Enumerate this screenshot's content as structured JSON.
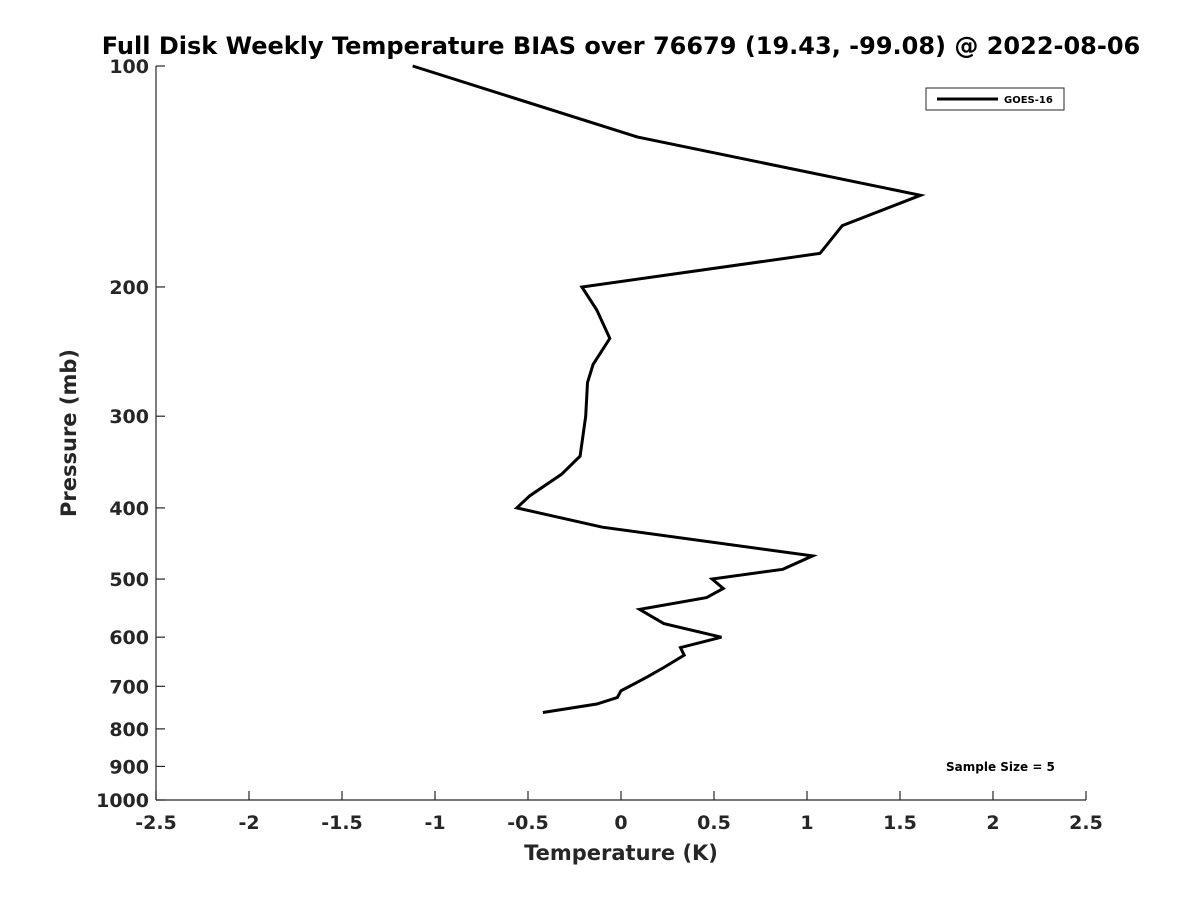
{
  "chart_data": {
    "type": "line",
    "title": "Full Disk Weekly Temperature BIAS over 76679 (19.43, -99.08) @ 2022-08-06",
    "xlabel": "Temperature (K)",
    "ylabel": "Pressure (mb)",
    "xlim": [
      -2.5,
      2.5
    ],
    "ylim": [
      100,
      1000
    ],
    "y_scale": "log",
    "y_reversed": true,
    "x_ticks": [
      "-2.5",
      "-2",
      "-1.5",
      "-1",
      "-0.5",
      "0",
      "0.5",
      "1",
      "1.5",
      "2",
      "2.5"
    ],
    "y_ticks": [
      "100",
      "200",
      "300",
      "400",
      "500",
      "600",
      "700",
      "800",
      "900",
      "1000"
    ],
    "grid": false,
    "legend_position": "top-right",
    "annotation": "Sample Size = 5",
    "series": [
      {
        "name": "GOES-16",
        "color": "#000000",
        "x": [
          -1.12,
          0.09,
          1.61,
          1.19,
          1.07,
          -0.21,
          -0.13,
          -0.06,
          -0.15,
          -0.18,
          -0.19,
          -0.22,
          -0.32,
          -0.49,
          -0.56,
          -0.1,
          1.03,
          0.87,
          0.49,
          0.55,
          0.46,
          0.1,
          0.23,
          0.54,
          0.32,
          0.34,
          0.23,
          0.14,
          0.0,
          -0.02,
          -0.13,
          -0.42
        ],
        "y": [
          100,
          125,
          150,
          165,
          180,
          200,
          215,
          235,
          255,
          270,
          300,
          340,
          360,
          385,
          400,
          425,
          465,
          485,
          500,
          515,
          530,
          550,
          575,
          600,
          620,
          635,
          660,
          680,
          710,
          725,
          740,
          760
        ]
      }
    ]
  }
}
